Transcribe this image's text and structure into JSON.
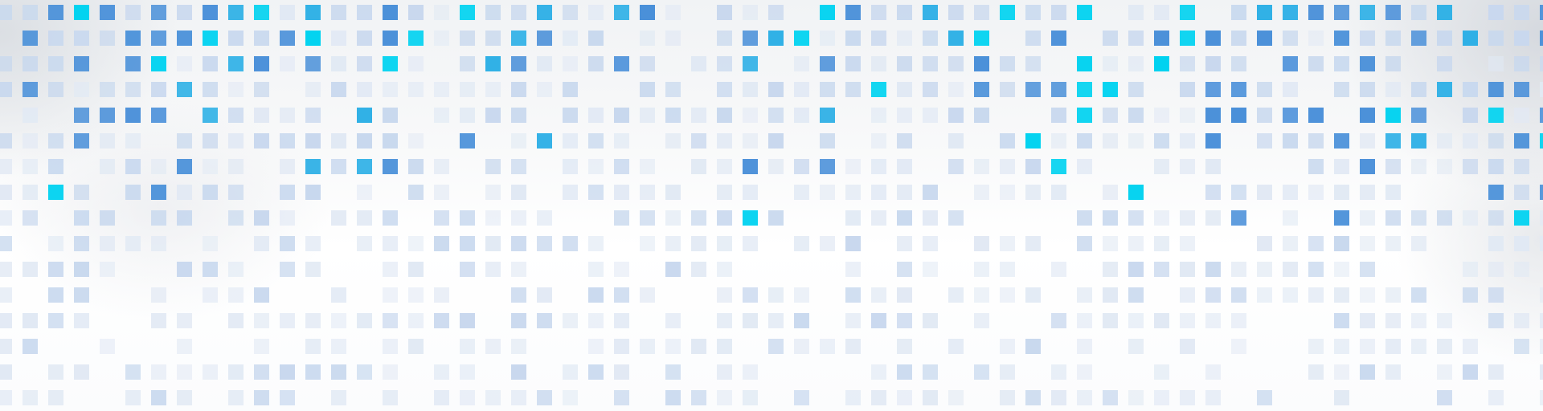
{
  "palette": {
    "cyan": "#00d2f0",
    "sky_blue": "#2fb0e6",
    "blue": "#4a90d9",
    "light_blue": "#c8d8ee",
    "pale_blue": "#e1e9f4",
    "background": "#ffffff"
  }
}
